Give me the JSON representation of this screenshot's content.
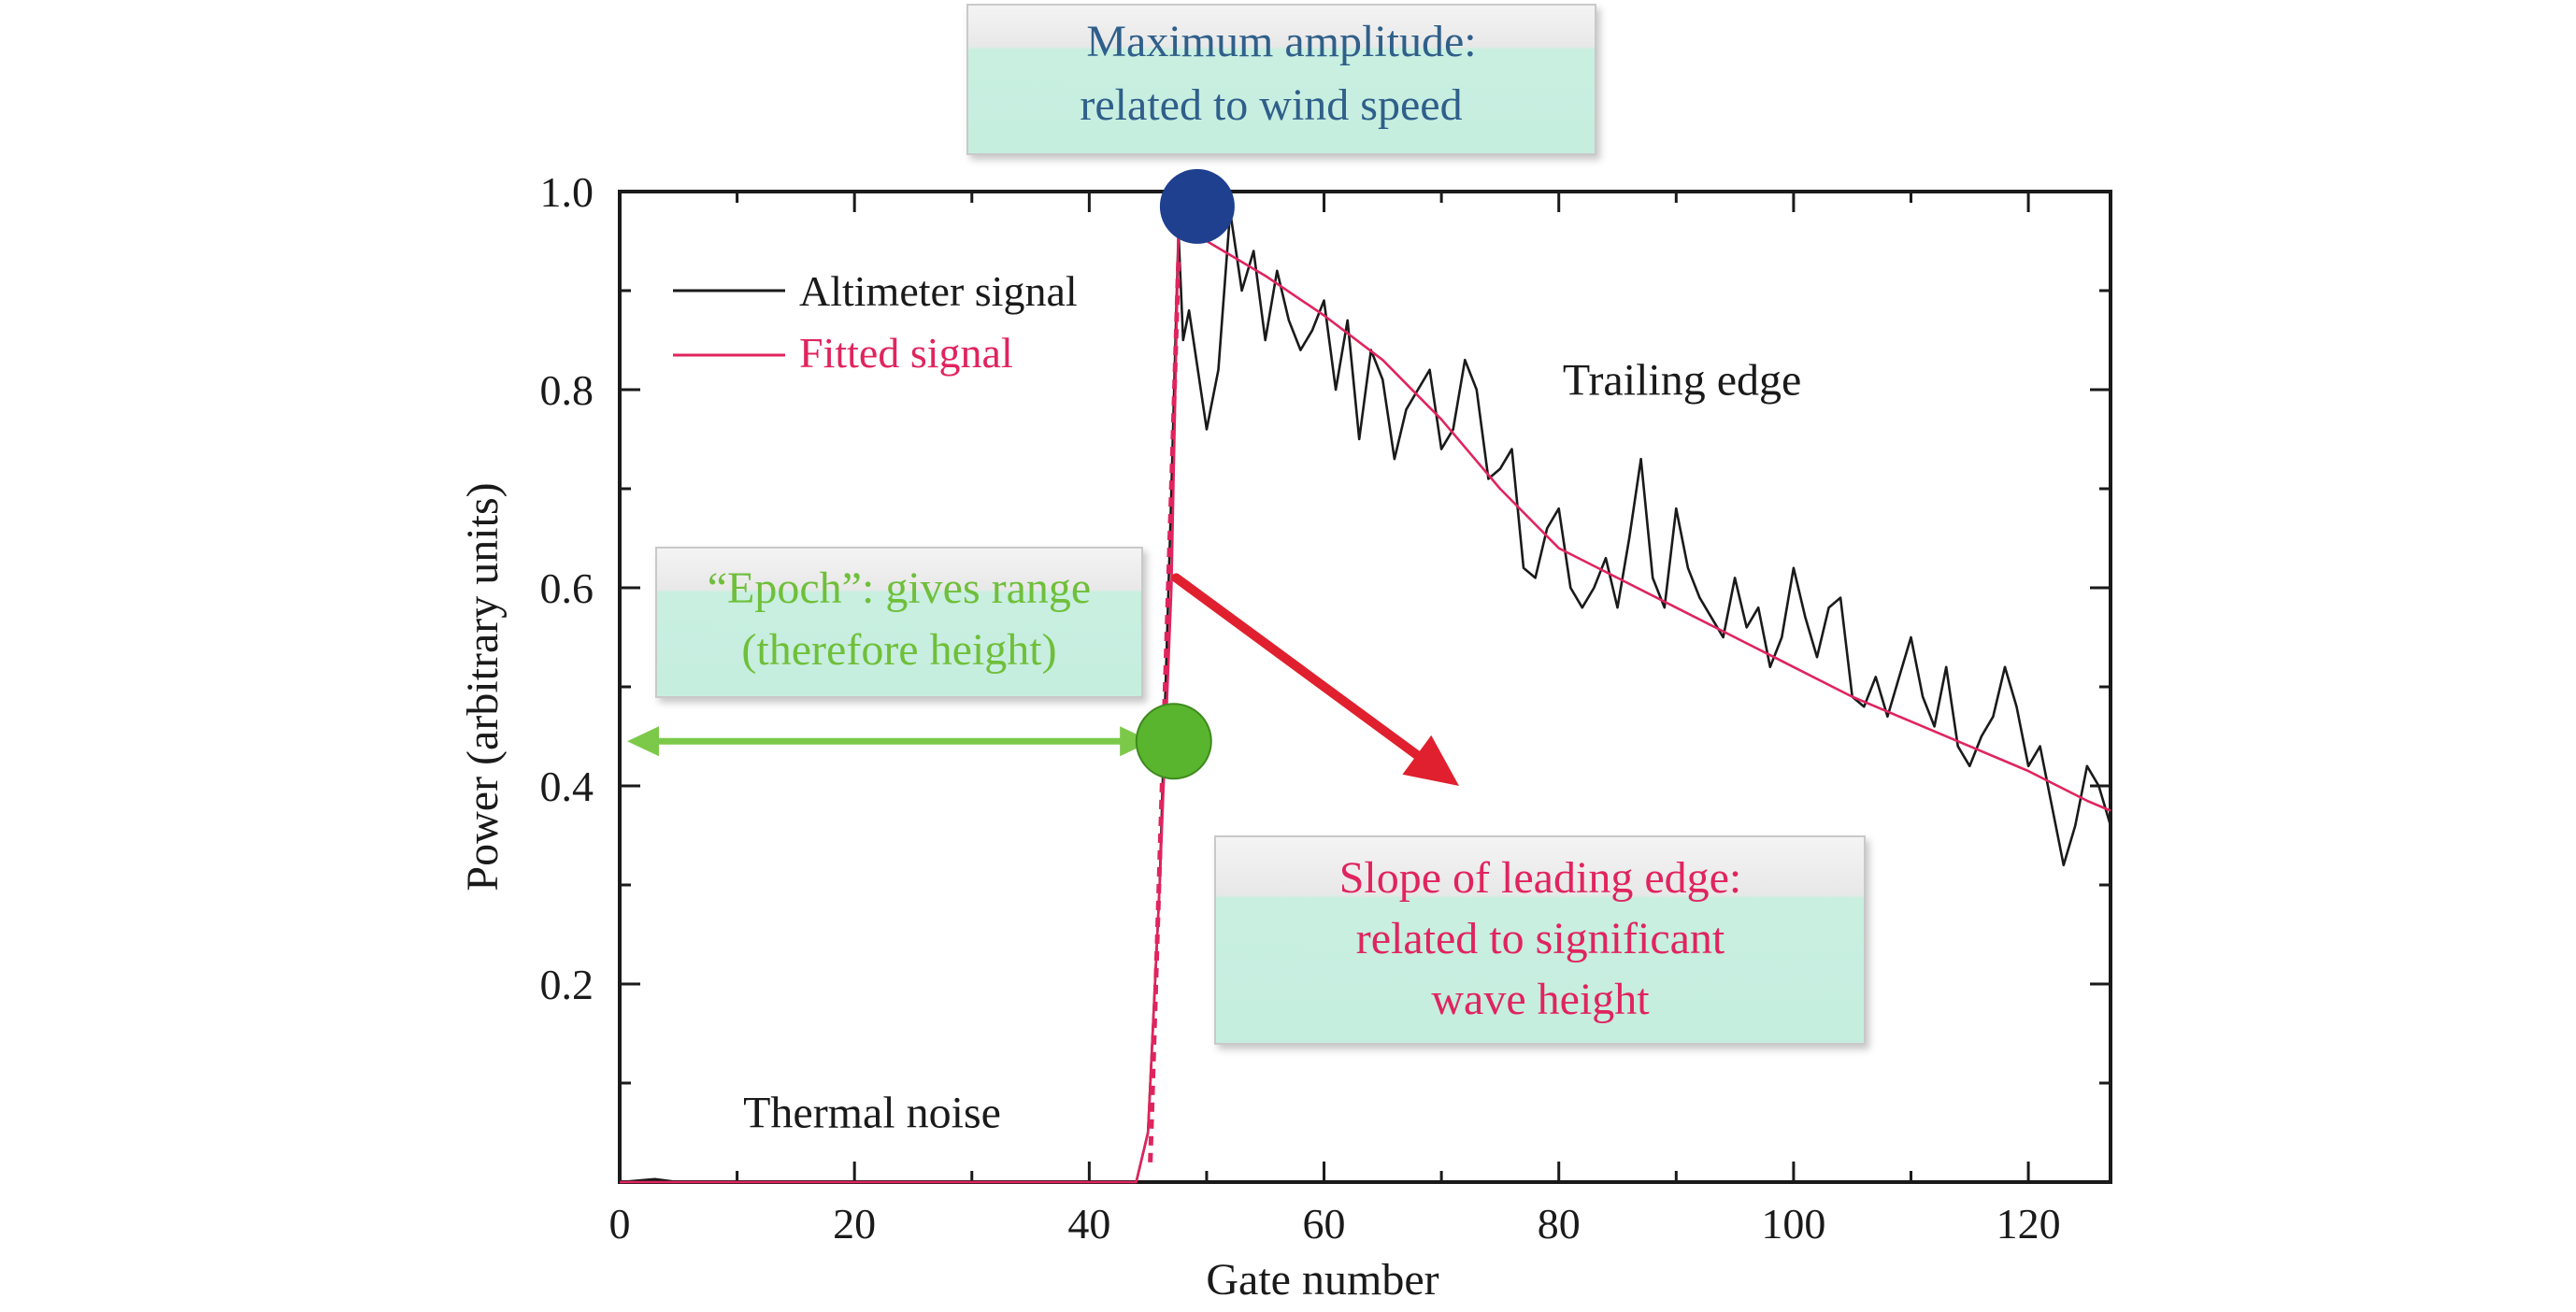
{
  "chart_data": {
    "type": "line",
    "title": "",
    "xlabel": "Gate number",
    "ylabel": "Power (arbitrary units)",
    "xlim": [
      0,
      127
    ],
    "ylim": [
      0,
      1.0
    ],
    "xticks": [
      0,
      20,
      40,
      60,
      80,
      100,
      120
    ],
    "yticks": [
      0.2,
      0.4,
      0.6,
      0.8,
      1.0
    ],
    "grid": false,
    "legend_position": "top-left",
    "series": [
      {
        "name": "Altimeter signal",
        "color": "#1a1a1a",
        "x": [
          0,
          3,
          5,
          10,
          20,
          30,
          40,
          44,
          45,
          46,
          47,
          47.6,
          48,
          48.5,
          49,
          50,
          51,
          52,
          53,
          54,
          55,
          56,
          57,
          58,
          59,
          60,
          61,
          62,
          63,
          64,
          65,
          66,
          67,
          68,
          69,
          70,
          71,
          72,
          73,
          74,
          75,
          76,
          77,
          78,
          79,
          80,
          81,
          82,
          83,
          84,
          85,
          86,
          87,
          88,
          89,
          90,
          91,
          92,
          93,
          94,
          95,
          96,
          97,
          98,
          99,
          100,
          101,
          102,
          103,
          104,
          105,
          106,
          107,
          108,
          109,
          110,
          111,
          112,
          113,
          114,
          115,
          116,
          117,
          118,
          119,
          120,
          121,
          122,
          123,
          124,
          125,
          126,
          127
        ],
        "y": [
          0,
          0.003,
          0,
          0,
          0,
          0,
          0,
          0,
          0.05,
          0.3,
          0.7,
          0.96,
          0.85,
          0.88,
          0.84,
          0.76,
          0.82,
          0.98,
          0.9,
          0.94,
          0.85,
          0.92,
          0.87,
          0.84,
          0.86,
          0.89,
          0.8,
          0.87,
          0.75,
          0.84,
          0.81,
          0.73,
          0.78,
          0.8,
          0.82,
          0.74,
          0.76,
          0.83,
          0.8,
          0.71,
          0.72,
          0.74,
          0.62,
          0.61,
          0.66,
          0.68,
          0.6,
          0.58,
          0.6,
          0.63,
          0.58,
          0.65,
          0.73,
          0.61,
          0.58,
          0.68,
          0.62,
          0.59,
          0.57,
          0.55,
          0.61,
          0.56,
          0.58,
          0.52,
          0.55,
          0.62,
          0.57,
          0.53,
          0.58,
          0.59,
          0.49,
          0.48,
          0.51,
          0.47,
          0.51,
          0.55,
          0.49,
          0.46,
          0.52,
          0.44,
          0.42,
          0.45,
          0.47,
          0.52,
          0.48,
          0.42,
          0.44,
          0.38,
          0.32,
          0.36,
          0.42,
          0.4,
          0.36
        ]
      },
      {
        "name": "Fitted signal",
        "color": "#e0245e",
        "x": [
          0,
          44,
          45,
          46,
          47,
          47.6,
          50,
          55,
          60,
          65,
          70,
          75,
          80,
          85,
          90,
          95,
          100,
          105,
          110,
          115,
          120,
          125,
          127
        ],
        "y": [
          0,
          0,
          0.05,
          0.3,
          0.6,
          0.96,
          0.95,
          0.915,
          0.875,
          0.83,
          0.77,
          0.7,
          0.64,
          0.61,
          0.58,
          0.55,
          0.52,
          0.49,
          0.465,
          0.44,
          0.415,
          0.385,
          0.375
        ]
      }
    ],
    "annotations": [
      {
        "id": "max_amplitude",
        "lines": [
          "Maximum amplitude:",
          "related to wind speed"
        ],
        "color": "#2f5f8a",
        "marker": {
          "x": 49.2,
          "y": 0.985,
          "color": "#1f3f8f"
        }
      },
      {
        "id": "epoch",
        "lines": [
          "“Epoch”: gives range",
          "(therefore height)"
        ],
        "color": "#6fbf3a",
        "marker": {
          "x": 47.2,
          "y": 0.445,
          "color": "#5ab52e"
        },
        "arrow_from_x": 0,
        "arrow_to_x": 45,
        "arrow_y": 0.445
      },
      {
        "id": "slope",
        "lines": [
          "Slope of leading edge:",
          "related to significant",
          "wave height"
        ],
        "color": "#e0245e",
        "arrow_color": "#e0202e",
        "arrow_from": {
          "x": 47.4,
          "y": 0.61
        },
        "arrow_to": {
          "x": 71.5,
          "y": 0.4
        }
      },
      {
        "id": "trailing_edge",
        "text": "Trailing edge",
        "color": "#1a1a1a",
        "x": 90.5,
        "y": 0.795
      },
      {
        "id": "thermal_noise",
        "text": "Thermal noise",
        "color": "#1a1a1a",
        "x": 21.5,
        "y": 0.055
      }
    ]
  }
}
